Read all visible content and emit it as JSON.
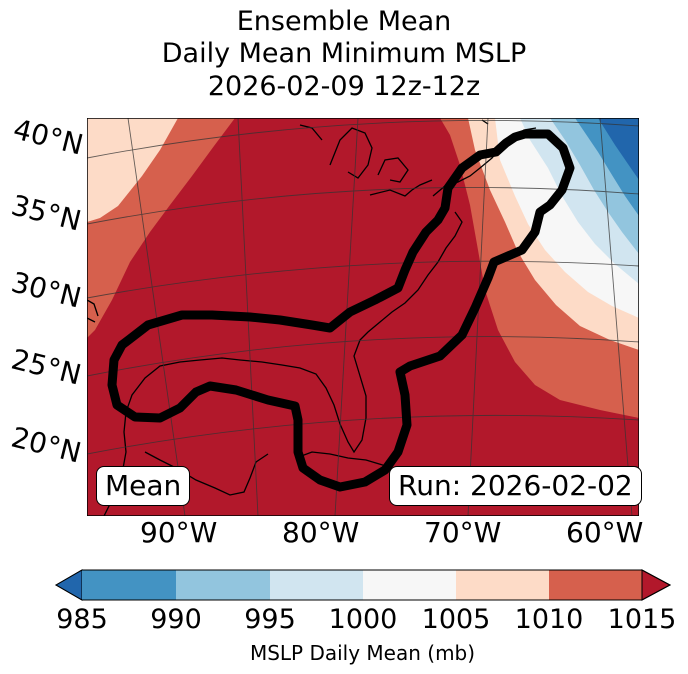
{
  "title": {
    "line1": "Ensemble Mean",
    "line2": "Daily Mean Minimum MSLP",
    "line3": "2026-02-09 12z-12z"
  },
  "map": {
    "lat_labels": [
      "40°N",
      "35°N",
      "30°N",
      "25°N",
      "20°N"
    ],
    "lon_labels": [
      "90°W",
      "80°W",
      "70°W",
      "60°W"
    ],
    "mean_label": "Mean",
    "run_label": "Run: 2026-02-02"
  },
  "colorbar": {
    "ticks": [
      "985",
      "990",
      "995",
      "1000",
      "1005",
      "1010",
      "1015"
    ],
    "label": "MSLP Daily Mean (mb)",
    "colors": [
      "#2166ac",
      "#4393c3",
      "#92c5de",
      "#d1e5f0",
      "#f7f7f7",
      "#fddbc7",
      "#d6604d",
      "#b2182b"
    ]
  }
}
